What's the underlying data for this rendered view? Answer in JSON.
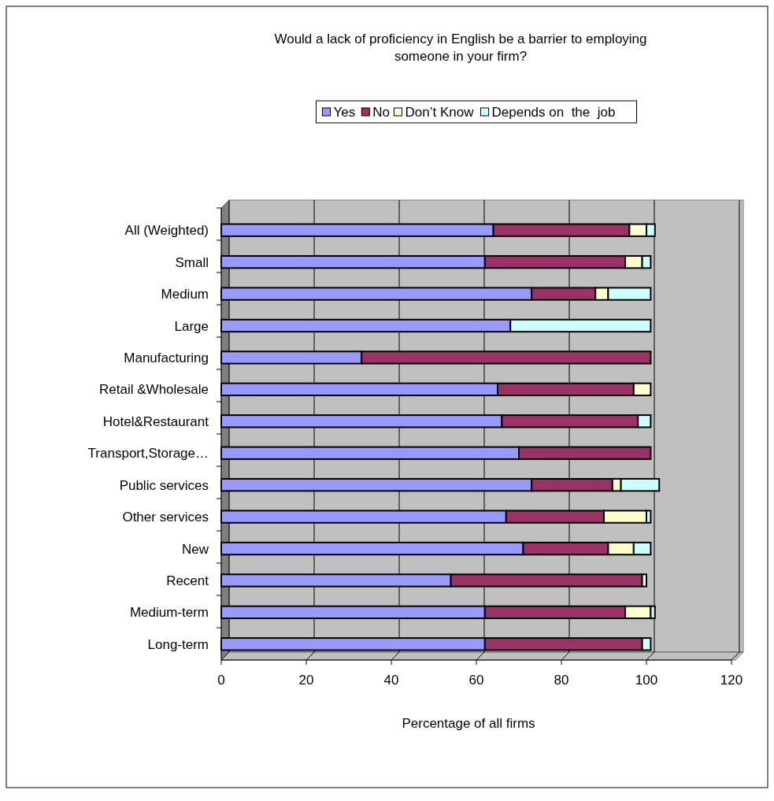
{
  "chart_data": {
    "type": "bar",
    "orientation": "horizontal",
    "stacked": true,
    "title": "Would a lack of proficiency in English be a barrier to employing someone in your firm?",
    "xlabel": "Percentage of all firms",
    "categories": [
      "All (Weighted)",
      "Small",
      "Medium",
      "Large",
      "Manufacturing",
      "Retail &Wholesale",
      "Hotel&Restaurant",
      "Transport,Storage…",
      "Public services",
      "Other services",
      "New",
      "Recent",
      "Medium-term",
      "Long-term"
    ],
    "series": [
      {
        "name": "Yes",
        "color": "#9999ff",
        "values": [
          64,
          62,
          73,
          68,
          33,
          65,
          66,
          70,
          73,
          67,
          71,
          54,
          62,
          62
        ]
      },
      {
        "name": "No",
        "color": "#993366",
        "values": [
          32,
          33,
          15,
          0,
          68,
          32,
          32,
          31,
          19,
          23,
          20,
          45,
          33,
          37
        ]
      },
      {
        "name": "Don’t Know",
        "color": "#ffffcc",
        "values": [
          4,
          4,
          3,
          0,
          0,
          4,
          0,
          0,
          2,
          10,
          6,
          1,
          6,
          0
        ]
      },
      {
        "name": "Depends on  the  job",
        "color": "#ccffff",
        "values": [
          2,
          2,
          10,
          33,
          0,
          0,
          3,
          0,
          9,
          1,
          4,
          0,
          1,
          2
        ]
      }
    ],
    "xlim": [
      0,
      120
    ],
    "xticks": [
      0,
      20,
      40,
      60,
      80,
      100,
      120
    ],
    "grid": "x",
    "legend": "top"
  }
}
